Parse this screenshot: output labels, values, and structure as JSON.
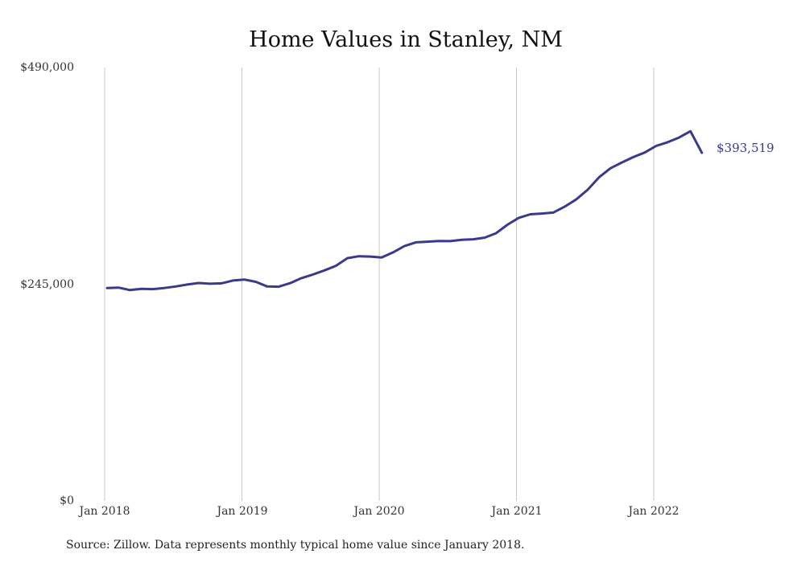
{
  "chart_data": {
    "type": "line",
    "title": "Home Values in Stanley, NM",
    "source_note": "Source: Zillow. Data represents monthly typical home value since January 2018.",
    "x_tick_labels": [
      "Jan 2018",
      "Jan 2019",
      "Jan 2020",
      "Jan 2021",
      "Jan 2022"
    ],
    "y_tick_labels": [
      "$0",
      "$245,000",
      "$490,000"
    ],
    "ylim": [
      0,
      490000
    ],
    "grid": "vertical",
    "line_color": "#3a3a8c",
    "end_label": "$393,519",
    "series": [
      {
        "values": [
          240700,
          241200,
          238400,
          239800,
          239500,
          240700,
          242500,
          244600,
          246400,
          245500,
          246000,
          249200,
          250300,
          247700,
          242500,
          242200,
          246200,
          251900,
          256000,
          260600,
          265800,
          274500,
          276600,
          276300,
          275200,
          281000,
          288200,
          292400,
          293100,
          293800,
          293700,
          295300,
          295800,
          297600,
          302600,
          312300,
          320100,
          324100,
          324900,
          326000,
          332600,
          340700,
          351700,
          365800,
          376100,
          382600,
          388700,
          393900,
          401400,
          405500,
          410800,
          418000,
          393519
        ]
      }
    ]
  }
}
